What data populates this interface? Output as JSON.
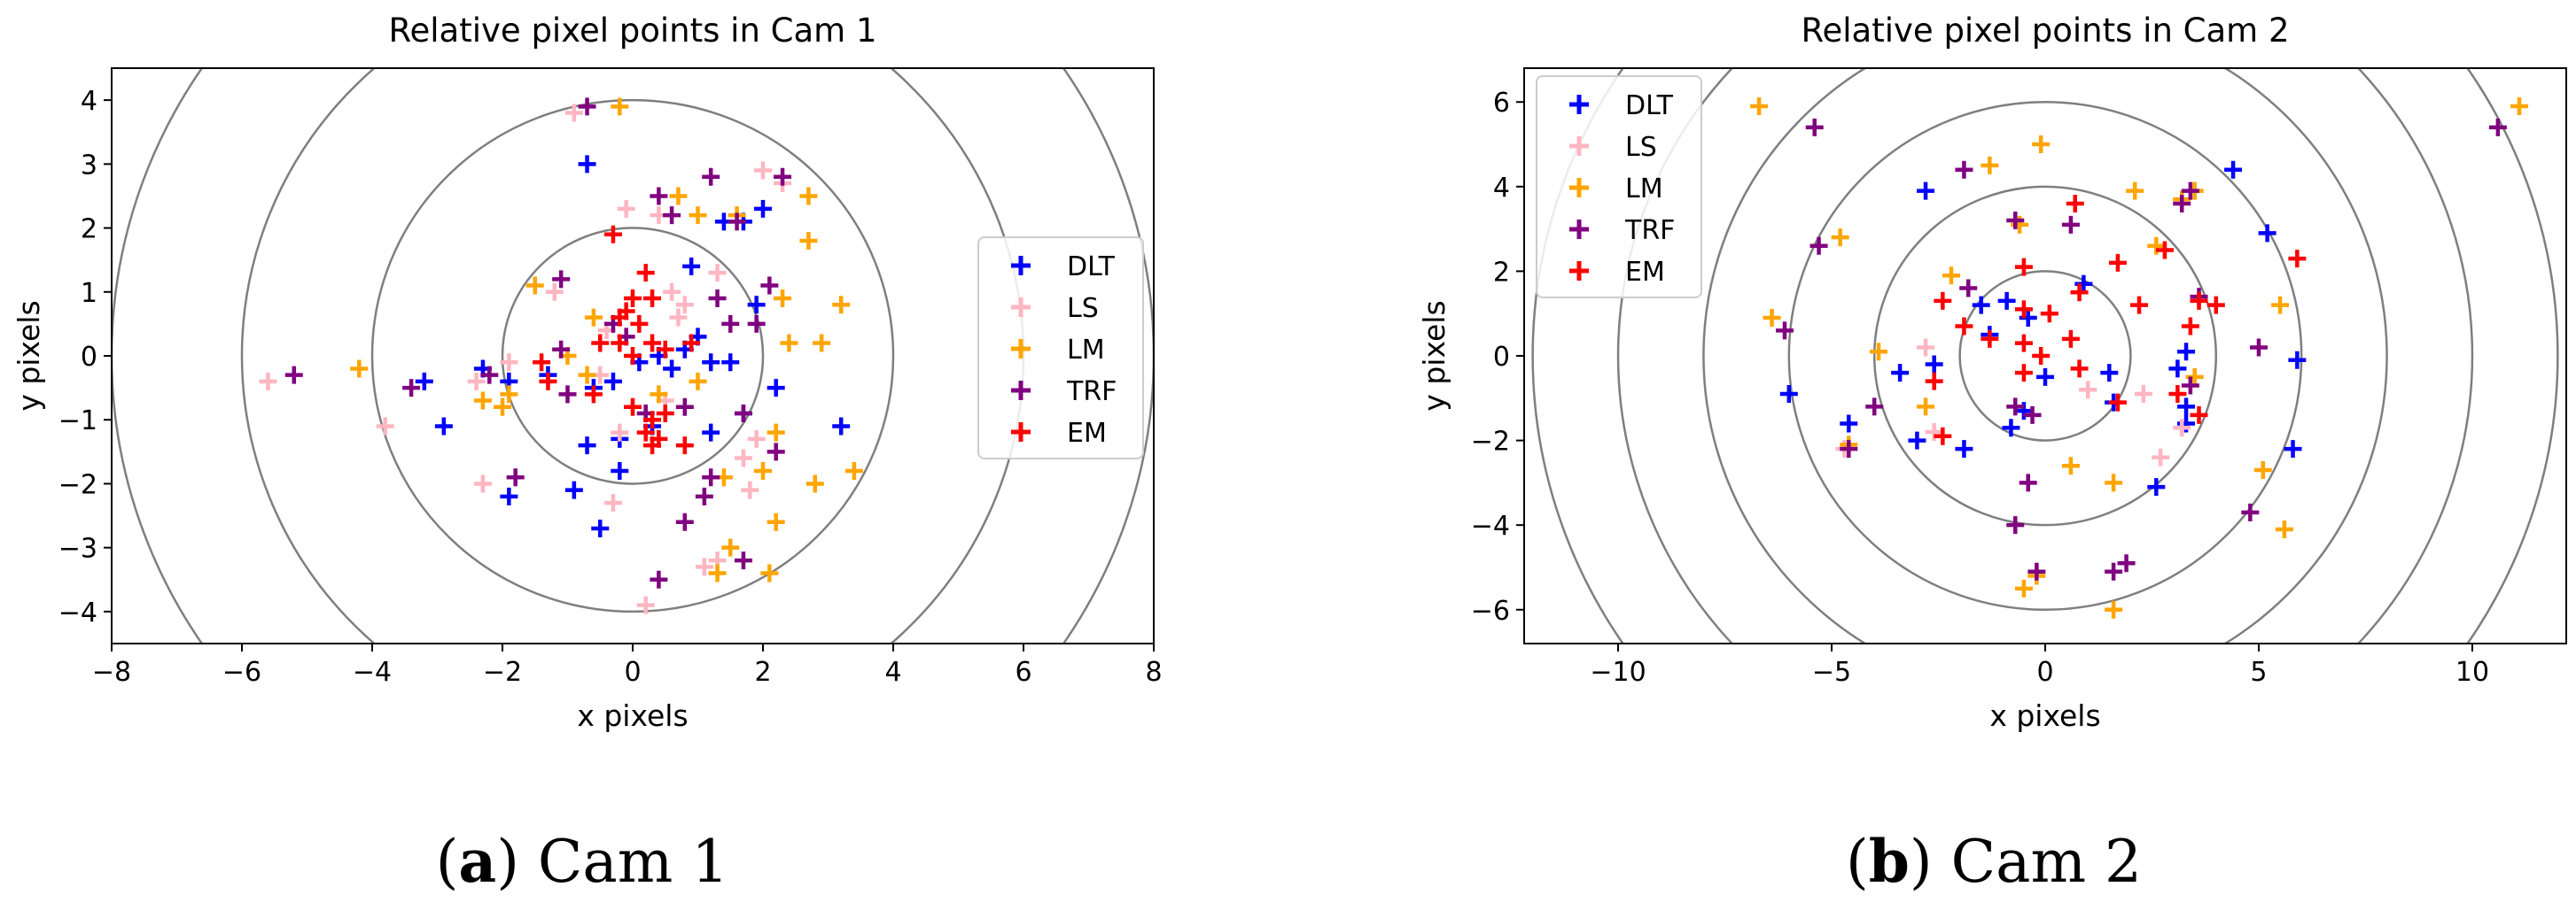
{
  "chart_data": [
    {
      "type": "scatter",
      "title": "Relative pixel points in Cam 1",
      "xlabel": "x pixels",
      "ylabel": "y pixels",
      "xlim": [
        -8,
        8
      ],
      "ylim": [
        -4.5,
        4.5
      ],
      "xticks": [
        -8,
        -6,
        -4,
        -2,
        0,
        2,
        4,
        6,
        8
      ],
      "yticks": [
        -4,
        -3,
        -2,
        -1,
        0,
        1,
        2,
        3,
        4
      ],
      "circle_radii": [
        2,
        4,
        6,
        8
      ],
      "legend_position": "center-right",
      "caption_letter": "(a)",
      "caption_text": "Cam 1",
      "series": [
        {
          "name": "DLT",
          "color": "#0000ff",
          "points": [
            [
              -0.7,
              3.0
            ],
            [
              0.9,
              1.4
            ],
            [
              1.7,
              2.1
            ],
            [
              2.0,
              2.3
            ],
            [
              1.4,
              2.1
            ],
            [
              1.9,
              0.8
            ],
            [
              1.0,
              0.3
            ],
            [
              0.8,
              0.1
            ],
            [
              0.4,
              0.0
            ],
            [
              0.1,
              -0.1
            ],
            [
              -0.3,
              -0.4
            ],
            [
              -0.6,
              -0.5
            ],
            [
              0.6,
              -0.2
            ],
            [
              1.2,
              -0.1
            ],
            [
              1.5,
              -0.1
            ],
            [
              2.2,
              -0.5
            ],
            [
              1.7,
              -0.9
            ],
            [
              1.2,
              -1.2
            ],
            [
              0.3,
              -1.1
            ],
            [
              -0.2,
              -1.3
            ],
            [
              -0.7,
              -1.4
            ],
            [
              -1.3,
              -0.3
            ],
            [
              -2.3,
              -0.2
            ],
            [
              -1.9,
              -0.4
            ],
            [
              -3.2,
              -0.4
            ],
            [
              -2.9,
              -1.1
            ],
            [
              -1.9,
              -2.2
            ],
            [
              -0.9,
              -2.1
            ],
            [
              -0.5,
              -2.7
            ],
            [
              -0.2,
              -1.8
            ],
            [
              3.2,
              -1.1
            ]
          ]
        },
        {
          "name": "LS",
          "color": "#ffb6c1",
          "points": [
            [
              -0.9,
              3.8
            ],
            [
              -0.1,
              2.3
            ],
            [
              0.4,
              2.2
            ],
            [
              0.8,
              0.8
            ],
            [
              0.7,
              0.6
            ],
            [
              2.0,
              2.9
            ],
            [
              2.3,
              2.7
            ],
            [
              1.3,
              1.3
            ],
            [
              -1.2,
              1.0
            ],
            [
              0.6,
              1.0
            ],
            [
              -0.4,
              0.4
            ],
            [
              -0.5,
              -0.3
            ],
            [
              0.5,
              -0.7
            ],
            [
              -1.9,
              -0.1
            ],
            [
              -2.4,
              -0.4
            ],
            [
              -3.8,
              -1.1
            ],
            [
              -2.3,
              -2.0
            ],
            [
              -1.8,
              -1.9
            ],
            [
              -0.3,
              -2.3
            ],
            [
              -0.2,
              -1.2
            ],
            [
              1.8,
              -2.1
            ],
            [
              1.7,
              -1.6
            ],
            [
              1.9,
              -1.3
            ],
            [
              1.3,
              -3.2
            ],
            [
              1.1,
              -3.3
            ],
            [
              0.2,
              -3.9
            ],
            [
              -5.6,
              -0.4
            ]
          ]
        },
        {
          "name": "LM",
          "color": "#ffa500",
          "points": [
            [
              -0.2,
              3.9
            ],
            [
              0.7,
              2.5
            ],
            [
              1.0,
              2.2
            ],
            [
              1.6,
              2.2
            ],
            [
              2.7,
              2.5
            ],
            [
              2.7,
              1.8
            ],
            [
              2.3,
              0.9
            ],
            [
              3.2,
              0.8
            ],
            [
              2.4,
              0.2
            ],
            [
              2.9,
              0.2
            ],
            [
              -1.0,
              0.0
            ],
            [
              -1.5,
              1.1
            ],
            [
              -0.6,
              0.6
            ],
            [
              -4.2,
              -0.2
            ],
            [
              -2.3,
              -0.7
            ],
            [
              -2.0,
              -0.8
            ],
            [
              -1.9,
              -0.6
            ],
            [
              -0.7,
              -0.3
            ],
            [
              0.4,
              -0.6
            ],
            [
              1.0,
              -0.4
            ],
            [
              2.2,
              -1.2
            ],
            [
              2.0,
              -1.8
            ],
            [
              2.8,
              -2.0
            ],
            [
              3.4,
              -1.8
            ],
            [
              2.2,
              -2.6
            ],
            [
              1.5,
              -3.0
            ],
            [
              1.3,
              -3.4
            ],
            [
              2.1,
              -3.4
            ],
            [
              1.4,
              -1.9
            ]
          ]
        },
        {
          "name": "TRF",
          "color": "#800080",
          "points": [
            [
              -0.7,
              3.9
            ],
            [
              0.4,
              2.5
            ],
            [
              0.6,
              2.2
            ],
            [
              1.2,
              2.8
            ],
            [
              2.3,
              2.8
            ],
            [
              1.6,
              2.1
            ],
            [
              2.1,
              1.1
            ],
            [
              1.3,
              0.9
            ],
            [
              1.5,
              0.5
            ],
            [
              1.9,
              0.5
            ],
            [
              -1.1,
              1.2
            ],
            [
              -1.1,
              0.1
            ],
            [
              -0.3,
              0.5
            ],
            [
              -0.1,
              0.3
            ],
            [
              -2.2,
              -0.3
            ],
            [
              -3.4,
              -0.5
            ],
            [
              -5.2,
              -0.3
            ],
            [
              -1.0,
              -0.6
            ],
            [
              0.8,
              -0.8
            ],
            [
              1.7,
              -0.9
            ],
            [
              2.2,
              -1.5
            ],
            [
              1.2,
              -1.9
            ],
            [
              1.1,
              -2.2
            ],
            [
              0.8,
              -2.6
            ],
            [
              1.7,
              -3.2
            ],
            [
              0.4,
              -3.5
            ],
            [
              -1.8,
              -1.9
            ],
            [
              0.2,
              -0.9
            ]
          ]
        },
        {
          "name": "EM",
          "color": "#ff0000",
          "points": [
            [
              -0.3,
              1.9
            ],
            [
              0.2,
              1.3
            ],
            [
              0.3,
              0.9
            ],
            [
              0.0,
              0.9
            ],
            [
              -0.2,
              0.6
            ],
            [
              0.1,
              0.5
            ],
            [
              0.3,
              0.2
            ],
            [
              0.5,
              0.1
            ],
            [
              0.0,
              0.0
            ],
            [
              -0.2,
              0.2
            ],
            [
              -0.5,
              0.2
            ],
            [
              -0.1,
              0.7
            ],
            [
              -1.4,
              -0.1
            ],
            [
              -1.3,
              -0.4
            ],
            [
              -0.6,
              -0.6
            ],
            [
              0.0,
              -0.8
            ],
            [
              0.3,
              -1.0
            ],
            [
              0.2,
              -1.2
            ],
            [
              0.4,
              -1.3
            ],
            [
              0.3,
              -1.4
            ],
            [
              0.8,
              -1.4
            ],
            [
              0.5,
              -0.9
            ],
            [
              0.9,
              0.2
            ]
          ]
        }
      ]
    },
    {
      "type": "scatter",
      "title": "Relative pixel points in Cam 2",
      "xlabel": "x pixels",
      "ylabel": "y pixels",
      "xlim": [
        -12.2,
        12.2
      ],
      "ylim": [
        -6.8,
        6.8
      ],
      "xticks": [
        -10,
        -5,
        0,
        5,
        10
      ],
      "yticks": [
        -6,
        -4,
        -2,
        0,
        2,
        4,
        6
      ],
      "circle_radii": [
        2,
        4,
        6,
        8,
        10,
        12,
        14
      ],
      "legend_position": "upper-left",
      "caption_letter": "(b)",
      "caption_text": "Cam 2",
      "series": [
        {
          "name": "DLT",
          "color": "#0000ff",
          "points": [
            [
              -2.8,
              3.9
            ],
            [
              4.4,
              4.4
            ],
            [
              5.2,
              2.9
            ],
            [
              5.9,
              -0.1
            ],
            [
              5.8,
              -2.2
            ],
            [
              3.3,
              -1.6
            ],
            [
              3.3,
              -1.2
            ],
            [
              3.1,
              -0.3
            ],
            [
              3.3,
              0.1
            ],
            [
              1.6,
              -1.1
            ],
            [
              1.5,
              -0.4
            ],
            [
              0.9,
              1.7
            ],
            [
              -0.9,
              1.3
            ],
            [
              -0.4,
              0.9
            ],
            [
              -1.5,
              1.2
            ],
            [
              -1.3,
              0.5
            ],
            [
              -1.9,
              -2.2
            ],
            [
              -3.0,
              -2.0
            ],
            [
              -3.4,
              -0.4
            ],
            [
              -4.6,
              -1.6
            ],
            [
              -6.0,
              -0.9
            ],
            [
              -0.8,
              -1.7
            ],
            [
              -0.5,
              -1.3
            ],
            [
              0.0,
              -0.5
            ],
            [
              -2.6,
              -0.2
            ],
            [
              2.6,
              -3.1
            ]
          ]
        },
        {
          "name": "LS",
          "color": "#ffb6c1",
          "points": [
            [
              -2.8,
              0.2
            ],
            [
              1.0,
              -0.8
            ],
            [
              2.3,
              -0.9
            ],
            [
              2.7,
              -2.4
            ],
            [
              3.2,
              -1.7
            ],
            [
              -4.7,
              -2.2
            ],
            [
              -2.6,
              -1.8
            ]
          ]
        },
        {
          "name": "LM",
          "color": "#ffa500",
          "points": [
            [
              -6.7,
              5.9
            ],
            [
              -0.1,
              5.0
            ],
            [
              -1.3,
              4.5
            ],
            [
              -2.2,
              1.9
            ],
            [
              -4.8,
              2.8
            ],
            [
              -6.4,
              0.9
            ],
            [
              -3.9,
              0.1
            ],
            [
              -2.8,
              -1.2
            ],
            [
              -4.6,
              -2.1
            ],
            [
              2.1,
              3.9
            ],
            [
              3.5,
              3.9
            ],
            [
              3.2,
              3.7
            ],
            [
              2.6,
              2.6
            ],
            [
              5.5,
              1.2
            ],
            [
              3.5,
              -0.5
            ],
            [
              5.1,
              -2.7
            ],
            [
              5.6,
              -4.1
            ],
            [
              1.6,
              -3.0
            ],
            [
              0.6,
              -2.6
            ],
            [
              -0.2,
              -5.2
            ],
            [
              -0.5,
              -5.5
            ],
            [
              1.6,
              -6.0
            ],
            [
              11.1,
              5.9
            ],
            [
              -0.6,
              3.1
            ]
          ]
        },
        {
          "name": "TRF",
          "color": "#800080",
          "points": [
            [
              -5.4,
              5.4
            ],
            [
              -1.9,
              4.4
            ],
            [
              3.4,
              3.9
            ],
            [
              3.2,
              3.6
            ],
            [
              -0.7,
              3.2
            ],
            [
              0.6,
              3.1
            ],
            [
              3.6,
              1.4
            ],
            [
              -1.8,
              1.6
            ],
            [
              -6.1,
              0.6
            ],
            [
              -4.0,
              -1.2
            ],
            [
              -4.6,
              -2.2
            ],
            [
              -0.7,
              -1.2
            ],
            [
              -0.3,
              -1.4
            ],
            [
              3.4,
              -0.7
            ],
            [
              -0.4,
              -3.0
            ],
            [
              -0.7,
              -4.0
            ],
            [
              -0.2,
              -5.1
            ],
            [
              1.9,
              -4.9
            ],
            [
              1.6,
              -5.1
            ],
            [
              4.8,
              -3.7
            ],
            [
              5.0,
              0.2
            ],
            [
              -5.3,
              2.6
            ],
            [
              10.6,
              5.4
            ]
          ]
        },
        {
          "name": "EM",
          "color": "#ff0000",
          "points": [
            [
              0.7,
              3.6
            ],
            [
              1.7,
              2.2
            ],
            [
              2.8,
              2.5
            ],
            [
              0.8,
              1.5
            ],
            [
              2.2,
              1.2
            ],
            [
              3.6,
              1.3
            ],
            [
              4.0,
              1.2
            ],
            [
              5.9,
              2.3
            ],
            [
              3.4,
              0.7
            ],
            [
              0.1,
              1.0
            ],
            [
              -0.5,
              1.1
            ],
            [
              -0.5,
              0.3
            ],
            [
              -0.1,
              0.0
            ],
            [
              0.6,
              0.4
            ],
            [
              0.8,
              -0.3
            ],
            [
              -0.5,
              -0.4
            ],
            [
              -1.9,
              0.7
            ],
            [
              -1.3,
              0.4
            ],
            [
              -2.4,
              1.3
            ],
            [
              -2.6,
              -0.6
            ],
            [
              -2.4,
              -1.9
            ],
            [
              1.7,
              -1.1
            ],
            [
              3.1,
              -0.9
            ],
            [
              3.6,
              -1.4
            ],
            [
              -0.5,
              2.1
            ]
          ]
        }
      ]
    }
  ]
}
